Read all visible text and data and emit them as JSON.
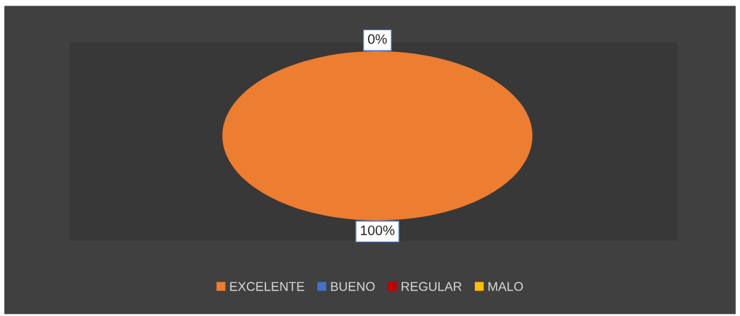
{
  "chart_data": {
    "type": "pie",
    "categories": [
      "EXCELENTE",
      "BUENO",
      "REGULAR",
      "MALO"
    ],
    "values": [
      100,
      0,
      0,
      0
    ],
    "colors": [
      "#ed7d31",
      "#4472c4",
      "#c00000",
      "#ffc000"
    ],
    "value_labels": [
      "100%",
      "0%",
      null,
      null
    ],
    "legend": "bottom"
  }
}
